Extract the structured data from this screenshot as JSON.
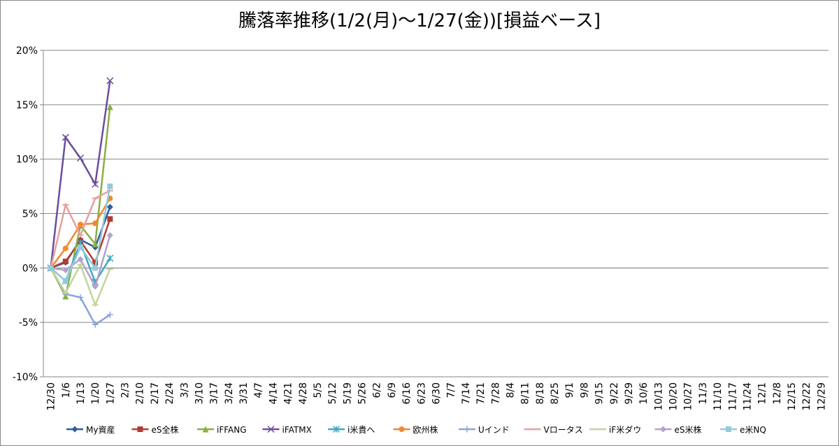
{
  "chart_data": {
    "type": "line",
    "title": "騰落率推移(1/2(月)～1/27(金))[損益ベース]",
    "categories": [
      "12/30",
      "1/6",
      "1/13",
      "1/20",
      "1/27",
      "2/3",
      "2/10",
      "2/17",
      "2/24",
      "3/3",
      "3/10",
      "3/17",
      "3/24",
      "3/31",
      "4/7",
      "4/14",
      "4/21",
      "4/28",
      "5/5",
      "5/12",
      "5/19",
      "5/26",
      "6/2",
      "6/9",
      "6/16",
      "6/23",
      "6/30",
      "7/7",
      "7/14",
      "7/21",
      "7/28",
      "8/4",
      "8/11",
      "8/18",
      "8/25",
      "9/1",
      "9/8",
      "9/15",
      "9/22",
      "9/29",
      "10/6",
      "10/13",
      "10/20",
      "10/27",
      "11/3",
      "11/10",
      "11/17",
      "11/24",
      "12/1",
      "12/8",
      "12/15",
      "12/22",
      "12/29"
    ],
    "ylim": [
      -10,
      20
    ],
    "yticks": [
      {
        "value": -10,
        "label": "-10%"
      },
      {
        "value": -5,
        "label": "-5%"
      },
      {
        "value": 0,
        "label": "0%"
      },
      {
        "value": 5,
        "label": "5%"
      },
      {
        "value": 10,
        "label": "10%"
      },
      {
        "value": 15,
        "label": "15%"
      },
      {
        "value": 20,
        "label": "20%"
      }
    ],
    "grid": true,
    "legend": "bottom",
    "series": [
      {
        "name": "My資産",
        "color": "#2f5d9e",
        "marker": "diamond",
        "values": [
          0,
          0.5,
          2.6,
          1.9,
          5.6,
          null,
          null,
          null,
          null,
          null,
          null,
          null,
          null,
          null,
          null,
          null,
          null,
          null,
          null,
          null,
          null,
          null,
          null,
          null,
          null,
          null,
          null,
          null,
          null,
          null,
          null,
          null,
          null,
          null,
          null,
          null,
          null,
          null,
          null,
          null,
          null,
          null,
          null,
          null,
          null,
          null,
          null,
          null,
          null,
          null,
          null,
          null,
          null
        ]
      },
      {
        "name": "eS全株",
        "color": "#b33b32",
        "marker": "square",
        "values": [
          0,
          0.6,
          2.5,
          0.5,
          4.5,
          null,
          null,
          null,
          null,
          null,
          null,
          null,
          null,
          null,
          null,
          null,
          null,
          null,
          null,
          null,
          null,
          null,
          null,
          null,
          null,
          null,
          null,
          null,
          null,
          null,
          null,
          null,
          null,
          null,
          null,
          null,
          null,
          null,
          null,
          null,
          null,
          null,
          null,
          null,
          null,
          null,
          null,
          null,
          null,
          null,
          null,
          null,
          null
        ]
      },
      {
        "name": "iFFANG",
        "color": "#8aaf40",
        "marker": "triangle",
        "values": [
          0,
          -2.6,
          3.9,
          2.2,
          14.8,
          null,
          null,
          null,
          null,
          null,
          null,
          null,
          null,
          null,
          null,
          null,
          null,
          null,
          null,
          null,
          null,
          null,
          null,
          null,
          null,
          null,
          null,
          null,
          null,
          null,
          null,
          null,
          null,
          null,
          null,
          null,
          null,
          null,
          null,
          null,
          null,
          null,
          null,
          null,
          null,
          null,
          null,
          null,
          null,
          null,
          null,
          null,
          null
        ]
      },
      {
        "name": "iFATMX",
        "color": "#6b4d9c",
        "marker": "x",
        "values": [
          0,
          12.0,
          10.1,
          7.7,
          17.2,
          null,
          null,
          null,
          null,
          null,
          null,
          null,
          null,
          null,
          null,
          null,
          null,
          null,
          null,
          null,
          null,
          null,
          null,
          null,
          null,
          null,
          null,
          null,
          null,
          null,
          null,
          null,
          null,
          null,
          null,
          null,
          null,
          null,
          null,
          null,
          null,
          null,
          null,
          null,
          null,
          null,
          null,
          null,
          null,
          null,
          null,
          null,
          null
        ]
      },
      {
        "name": "i米貴へ",
        "color": "#3fa9c4",
        "marker": "star",
        "values": [
          0,
          -1.2,
          2.3,
          -1.3,
          0.9,
          null,
          null,
          null,
          null,
          null,
          null,
          null,
          null,
          null,
          null,
          null,
          null,
          null,
          null,
          null,
          null,
          null,
          null,
          null,
          null,
          null,
          null,
          null,
          null,
          null,
          null,
          null,
          null,
          null,
          null,
          null,
          null,
          null,
          null,
          null,
          null,
          null,
          null,
          null,
          null,
          null,
          null,
          null,
          null,
          null,
          null,
          null,
          null
        ]
      },
      {
        "name": "欧州株",
        "color": "#f08a2f",
        "marker": "circle",
        "values": [
          0,
          1.8,
          4.0,
          4.1,
          6.4,
          null,
          null,
          null,
          null,
          null,
          null,
          null,
          null,
          null,
          null,
          null,
          null,
          null,
          null,
          null,
          null,
          null,
          null,
          null,
          null,
          null,
          null,
          null,
          null,
          null,
          null,
          null,
          null,
          null,
          null,
          null,
          null,
          null,
          null,
          null,
          null,
          null,
          null,
          null,
          null,
          null,
          null,
          null,
          null,
          null,
          null,
          null,
          null
        ]
      },
      {
        "name": "Uインド",
        "color": "#8aa4d6",
        "marker": "plus",
        "values": [
          0,
          -2.4,
          -2.7,
          -5.2,
          -4.3,
          null,
          null,
          null,
          null,
          null,
          null,
          null,
          null,
          null,
          null,
          null,
          null,
          null,
          null,
          null,
          null,
          null,
          null,
          null,
          null,
          null,
          null,
          null,
          null,
          null,
          null,
          null,
          null,
          null,
          null,
          null,
          null,
          null,
          null,
          null,
          null,
          null,
          null,
          null,
          null,
          null,
          null,
          null,
          null,
          null,
          null,
          null,
          null
        ]
      },
      {
        "name": "Vロータス",
        "color": "#e4a09e",
        "marker": "dash",
        "values": [
          0,
          5.8,
          3.0,
          6.4,
          7.1,
          null,
          null,
          null,
          null,
          null,
          null,
          null,
          null,
          null,
          null,
          null,
          null,
          null,
          null,
          null,
          null,
          null,
          null,
          null,
          null,
          null,
          null,
          null,
          null,
          null,
          null,
          null,
          null,
          null,
          null,
          null,
          null,
          null,
          null,
          null,
          null,
          null,
          null,
          null,
          null,
          null,
          null,
          null,
          null,
          null,
          null,
          null,
          null
        ]
      },
      {
        "name": "iF米ダウ",
        "color": "#c2d69a",
        "marker": "dash",
        "values": [
          0,
          -2.3,
          0.3,
          -3.4,
          -0.1,
          null,
          null,
          null,
          null,
          null,
          null,
          null,
          null,
          null,
          null,
          null,
          null,
          null,
          null,
          null,
          null,
          null,
          null,
          null,
          null,
          null,
          null,
          null,
          null,
          null,
          null,
          null,
          null,
          null,
          null,
          null,
          null,
          null,
          null,
          null,
          null,
          null,
          null,
          null,
          null,
          null,
          null,
          null,
          null,
          null,
          null,
          null,
          null
        ]
      },
      {
        "name": "eS米株",
        "color": "#b2a2c8",
        "marker": "diamond",
        "values": [
          0,
          -0.2,
          0.8,
          -1.7,
          3.0,
          null,
          null,
          null,
          null,
          null,
          null,
          null,
          null,
          null,
          null,
          null,
          null,
          null,
          null,
          null,
          null,
          null,
          null,
          null,
          null,
          null,
          null,
          null,
          null,
          null,
          null,
          null,
          null,
          null,
          null,
          null,
          null,
          null,
          null,
          null,
          null,
          null,
          null,
          null,
          null,
          null,
          null,
          null,
          null,
          null,
          null,
          null,
          null
        ]
      },
      {
        "name": "e米NQ",
        "color": "#92cbdc",
        "marker": "square",
        "values": [
          0,
          -1.2,
          1.9,
          0.0,
          7.5,
          null,
          null,
          null,
          null,
          null,
          null,
          null,
          null,
          null,
          null,
          null,
          null,
          null,
          null,
          null,
          null,
          null,
          null,
          null,
          null,
          null,
          null,
          null,
          null,
          null,
          null,
          null,
          null,
          null,
          null,
          null,
          null,
          null,
          null,
          null,
          null,
          null,
          null,
          null,
          null,
          null,
          null,
          null,
          null,
          null,
          null,
          null,
          null
        ]
      }
    ]
  }
}
